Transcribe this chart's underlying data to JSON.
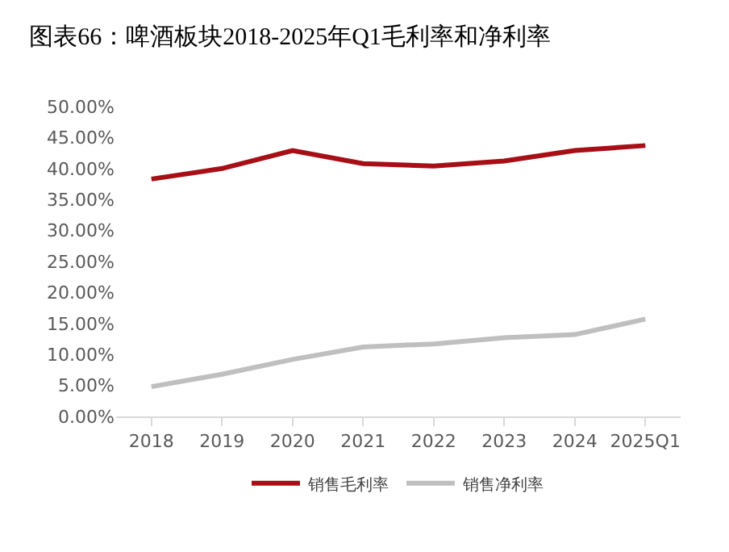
{
  "chart_data": {
    "type": "line",
    "title": "图表66：啤酒板块2018-2025年Q1毛利率和净利率",
    "categories": [
      "2018",
      "2019",
      "2020",
      "2021",
      "2022",
      "2023",
      "2024",
      "2025Q1"
    ],
    "series": [
      {
        "name": "销售毛利率",
        "color": "#a50f15",
        "values": [
          38.3,
          40.0,
          42.9,
          40.8,
          40.4,
          41.2,
          42.9,
          43.7
        ]
      },
      {
        "name": "销售净利率",
        "color": "#bfbfbf",
        "values": [
          4.8,
          6.8,
          9.2,
          11.2,
          11.7,
          12.7,
          13.2,
          15.7
        ]
      }
    ],
    "ylim": [
      0,
      50
    ],
    "yticks": [
      {
        "value": 0,
        "label": "0.00%"
      },
      {
        "value": 5,
        "label": "5.00%"
      },
      {
        "value": 10,
        "label": "10.00%"
      },
      {
        "value": 15,
        "label": "15.00%"
      },
      {
        "value": 20,
        "label": "20.00%"
      },
      {
        "value": 25,
        "label": "25.00%"
      },
      {
        "value": 30,
        "label": "30.00%"
      },
      {
        "value": 35,
        "label": "35.00%"
      },
      {
        "value": 40,
        "label": "40.00%"
      },
      {
        "value": 45,
        "label": "45.00%"
      },
      {
        "value": 50,
        "label": "50.00%"
      }
    ],
    "grid": false,
    "legend": "bottom",
    "marker": "none",
    "line_style": "solid"
  }
}
